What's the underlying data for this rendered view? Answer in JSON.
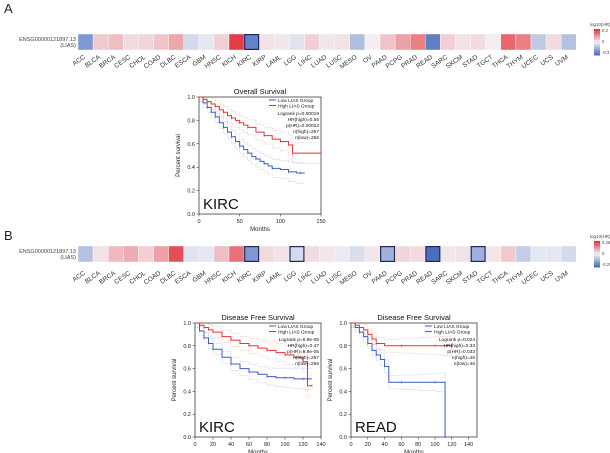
{
  "panel_labels": {
    "a": "A",
    "b": "B"
  },
  "cancer_types": [
    "ACC",
    "BLCA",
    "BRCA",
    "CESC",
    "CHOL",
    "COAD",
    "DLBC",
    "ESCA",
    "GBM",
    "HNSC",
    "KICH",
    "KIRC",
    "KIRP",
    "LAML",
    "LGG",
    "LIHC",
    "LUAD",
    "LUSC",
    "MESO",
    "OV",
    "PAAD",
    "PCPG",
    "PRAD",
    "READ",
    "SARC",
    "SKCM",
    "STAD",
    "TGCT",
    "THCA",
    "THYM",
    "UCEC",
    "UCS",
    "UVM"
  ],
  "colors": {
    "low": "#4a6fc0",
    "mid": "#f4f2f6",
    "high": "#e2383f",
    "low_group": "#3a5fc0",
    "high_group": "#e8322e",
    "grid": "#bbbbbb",
    "highlight_box": "#1f2a5a"
  },
  "chart_data": [
    {
      "type": "heatmap",
      "id": "A",
      "row_label": [
        "ENSG00000121897.13",
        "(LIAS)"
      ],
      "legend_title": "log10(HR)",
      "legend_ticks": [
        "0.3",
        "0",
        "-0.3"
      ],
      "values": [
        -0.22,
        0.07,
        0.09,
        0.04,
        0.05,
        0.08,
        0.13,
        -0.06,
        -0.03,
        0.06,
        0.31,
        -0.27,
        0.03,
        0.02,
        -0.04,
        0.06,
        0.02,
        0.03,
        -0.13,
        0.01,
        0.08,
        0.14,
        0.2,
        -0.28,
        0.06,
        0.03,
        0.04,
        0.01,
        0.24,
        0.2,
        -0.1,
        0.04,
        -0.12
      ],
      "highlighted": [
        "KIRC"
      ]
    },
    {
      "type": "line",
      "id": "A-km",
      "title": "Overall Survival",
      "xlabel": "Months",
      "ylabel": "Percent survival",
      "xlim": [
        0,
        150
      ],
      "ylim": [
        0,
        1
      ],
      "xticks": [
        0,
        50,
        100,
        150
      ],
      "yticks": [
        0,
        0.2,
        0.4,
        0.6,
        0.8,
        1.0
      ],
      "watermark": "KIRC",
      "legend": [
        "Low LIAS Group",
        "High LIAS Group"
      ],
      "stats": [
        "Logrank p=0.00019",
        "HR(high)=0.55",
        "p(HR)=0.00023",
        "n(high)=257",
        "n(low)=256"
      ],
      "series": [
        {
          "name": "Low LIAS Group",
          "x": [
            0,
            5,
            10,
            15,
            20,
            25,
            30,
            35,
            40,
            45,
            50,
            55,
            60,
            65,
            70,
            75,
            80,
            85,
            90,
            100,
            110,
            120,
            125,
            130
          ],
          "y": [
            1,
            0.95,
            0.91,
            0.87,
            0.83,
            0.78,
            0.74,
            0.7,
            0.66,
            0.62,
            0.58,
            0.55,
            0.52,
            0.49,
            0.47,
            0.45,
            0.43,
            0.41,
            0.39,
            0.38,
            0.36,
            0.35,
            0.35,
            0.35
          ]
        },
        {
          "name": "High LIAS Group",
          "x": [
            0,
            5,
            10,
            15,
            20,
            25,
            30,
            35,
            40,
            45,
            50,
            55,
            60,
            70,
            80,
            90,
            100,
            110,
            115,
            120,
            150
          ],
          "y": [
            1,
            0.98,
            0.96,
            0.94,
            0.92,
            0.89,
            0.87,
            0.84,
            0.82,
            0.8,
            0.78,
            0.76,
            0.74,
            0.7,
            0.67,
            0.64,
            0.62,
            0.59,
            0.52,
            0.52,
            0.52
          ]
        }
      ]
    },
    {
      "type": "heatmap",
      "id": "B",
      "row_label": [
        "ENSG00000121897.13",
        "(LIAS)"
      ],
      "legend_title": "log10(HR)",
      "legend_ticks": [
        "0.25",
        "0",
        "-0.25"
      ],
      "values": [
        -0.12,
        0.03,
        0.1,
        0.12,
        0.06,
        0.14,
        0.28,
        -0.04,
        -0.03,
        0.09,
        0.22,
        -0.22,
        0.04,
        0.03,
        -0.06,
        0.04,
        0.02,
        -0.02,
        -0.05,
        0.02,
        -0.16,
        0.05,
        0.04,
        -0.35,
        0.02,
        0.03,
        -0.16,
        0.02,
        0.07,
        -0.09,
        -0.03,
        -0.03,
        -0.06
      ],
      "highlighted": [
        "KIRC",
        "LGG",
        "PAAD",
        "READ",
        "STAD"
      ]
    },
    {
      "type": "line",
      "id": "B-km1",
      "title": "Disease Free Survival",
      "xlabel": "Months",
      "ylabel": "Percent survival",
      "xlim": [
        0,
        140
      ],
      "ylim": [
        0,
        1
      ],
      "xticks": [
        0,
        20,
        40,
        60,
        80,
        100,
        120,
        140
      ],
      "yticks": [
        0,
        0.2,
        0.4,
        0.6,
        0.8,
        1.0
      ],
      "watermark": "KIRC",
      "legend": [
        "Low LIAS Group",
        "High LIAS Group"
      ],
      "stats": [
        "Logrank p=6.9e-05",
        "HR(high)=0.47",
        "p(HR)=8.9e-05",
        "n(high)=257",
        "n(low)=256"
      ],
      "series": [
        {
          "name": "Low LIAS Group",
          "x": [
            0,
            5,
            10,
            15,
            20,
            30,
            40,
            50,
            60,
            70,
            80,
            90,
            100,
            110,
            120,
            130
          ],
          "y": [
            1,
            0.93,
            0.87,
            0.82,
            0.77,
            0.7,
            0.64,
            0.6,
            0.57,
            0.55,
            0.53,
            0.52,
            0.52,
            0.51,
            0.51,
            0.51
          ]
        },
        {
          "name": "High LIAS Group",
          "x": [
            0,
            5,
            10,
            15,
            20,
            30,
            40,
            50,
            60,
            70,
            80,
            90,
            100,
            110,
            120,
            125,
            130
          ],
          "y": [
            1,
            0.98,
            0.96,
            0.94,
            0.92,
            0.88,
            0.85,
            0.82,
            0.8,
            0.78,
            0.76,
            0.74,
            0.72,
            0.7,
            0.66,
            0.45,
            0.45
          ]
        }
      ]
    },
    {
      "type": "line",
      "id": "B-km2",
      "title": "Disease Free Survival",
      "xlabel": "Months",
      "ylabel": "Percent survival",
      "xlim": [
        0,
        150
      ],
      "ylim": [
        0,
        1
      ],
      "xticks": [
        0,
        20,
        40,
        60,
        80,
        100,
        120,
        140
      ],
      "yticks": [
        0,
        0.2,
        0.4,
        0.6,
        0.8,
        1.0
      ],
      "watermark": "READ",
      "legend": [
        "Low LIAS Group",
        "High LIAS Group"
      ],
      "stats": [
        "Logrank p=0.024",
        "HR(high)=0.33",
        "p(HR)=0.033",
        "n(high)=46",
        "n(low)=46"
      ],
      "series": [
        {
          "name": "Low LIAS Group",
          "x": [
            0,
            5,
            10,
            15,
            20,
            25,
            30,
            35,
            40,
            45,
            60,
            80,
            100,
            110,
            112
          ],
          "y": [
            1,
            0.96,
            0.92,
            0.88,
            0.82,
            0.76,
            0.72,
            0.68,
            0.62,
            0.48,
            0.48,
            0.48,
            0.48,
            0.48,
            0
          ]
        },
        {
          "name": "High LIAS Group",
          "x": [
            0,
            5,
            10,
            15,
            20,
            25,
            30,
            40,
            60,
            80,
            100,
            110,
            120
          ],
          "y": [
            1,
            0.98,
            0.96,
            0.94,
            0.9,
            0.86,
            0.82,
            0.8,
            0.8,
            0.8,
            0.8,
            0.8,
            0.8
          ]
        }
      ]
    }
  ]
}
